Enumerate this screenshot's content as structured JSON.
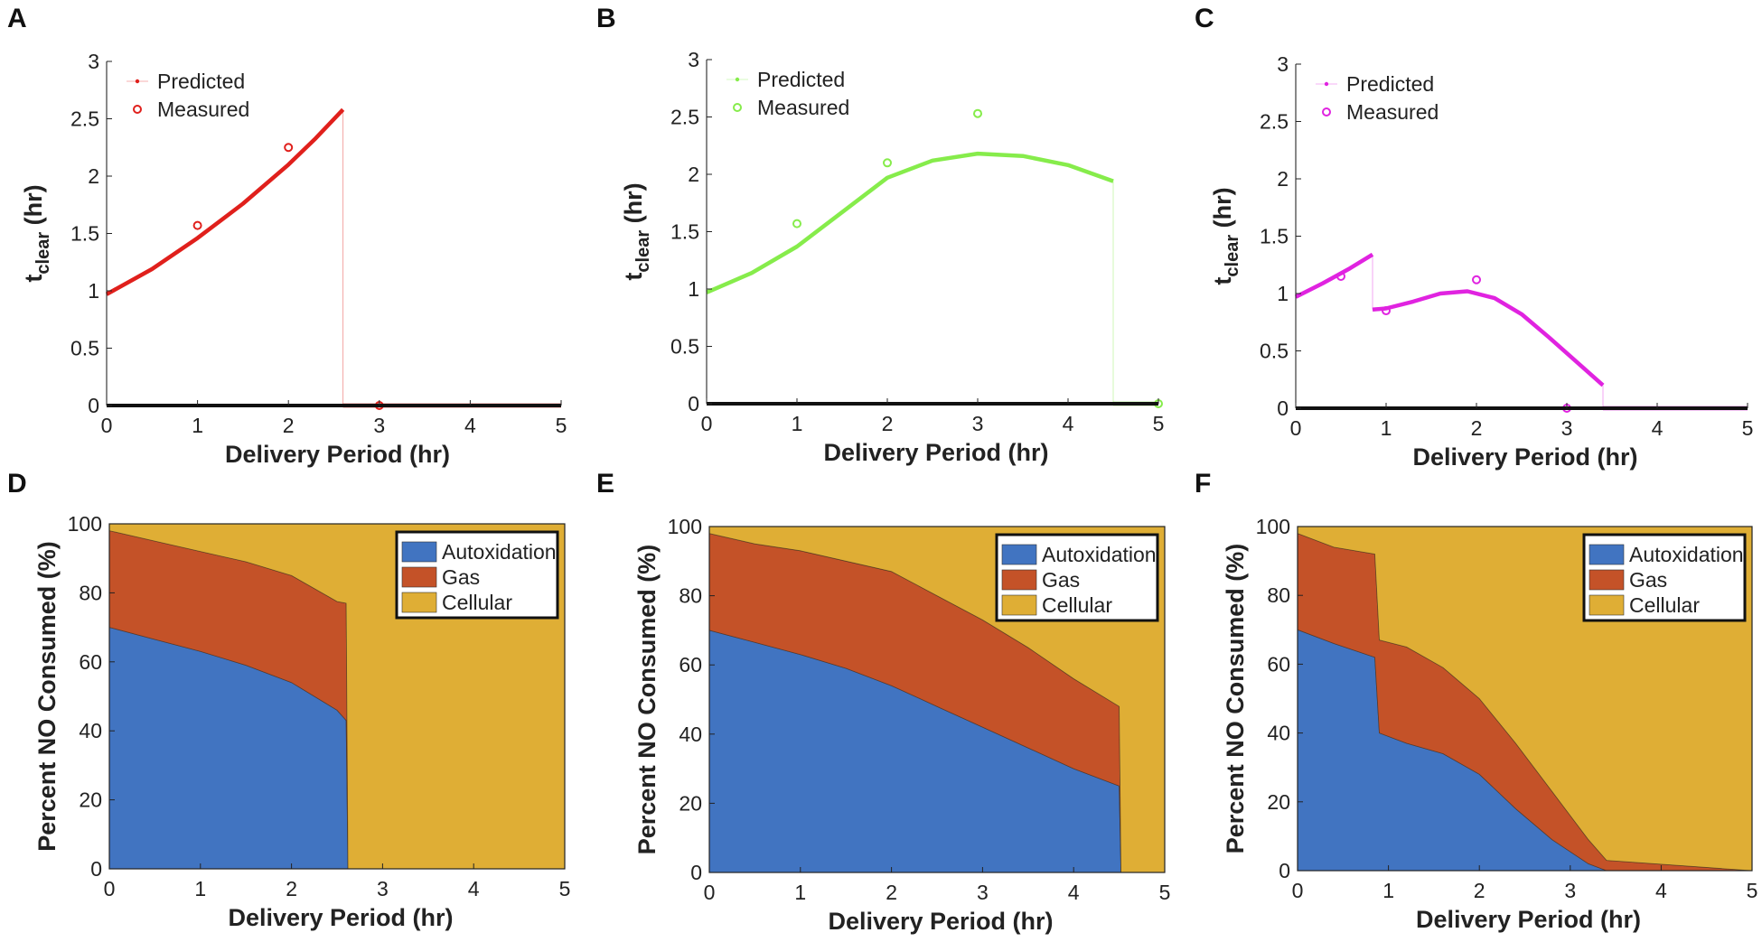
{
  "chart_data": [
    {
      "panel": "A",
      "type": "line",
      "xlabel": "Delivery Period (hr)",
      "ylabel_main": "t",
      "ylabel_sub": "clear",
      "ylabel_unit": "(hr)",
      "xlim": [
        0,
        5
      ],
      "ylim": [
        0,
        3
      ],
      "xticks": [
        "0",
        "1",
        "2",
        "3",
        "4",
        "5"
      ],
      "yticks": [
        "0",
        "0.5",
        "1",
        "1.5",
        "2",
        "2.5",
        "3"
      ],
      "color": "#e0201c",
      "legend": [
        "Predicted",
        "Measured"
      ],
      "series": [
        {
          "name": "Predicted",
          "x": [
            0,
            0.5,
            1,
            1.5,
            2,
            2.3,
            2.6
          ],
          "y": [
            0.97,
            1.19,
            1.46,
            1.76,
            2.1,
            2.33,
            2.58
          ]
        },
        {
          "name": "Predicted",
          "x": [
            2.6,
            3,
            4,
            5
          ],
          "y": [
            0,
            0,
            0,
            0
          ]
        }
      ],
      "measured": {
        "x": [
          1,
          2,
          3
        ],
        "y": [
          1.57,
          2.25,
          0
        ]
      }
    },
    {
      "panel": "B",
      "type": "line",
      "xlabel": "Delivery Period (hr)",
      "ylabel_main": "t",
      "ylabel_sub": "clear",
      "ylabel_unit": "(hr)",
      "xlim": [
        0,
        5
      ],
      "ylim": [
        0,
        3
      ],
      "xticks": [
        "0",
        "1",
        "2",
        "3",
        "4",
        "5"
      ],
      "yticks": [
        "0",
        "0.5",
        "1",
        "1.5",
        "2",
        "2.5",
        "3"
      ],
      "color": "#86ec4b",
      "legend": [
        "Predicted",
        "Measured"
      ],
      "series": [
        {
          "name": "Predicted",
          "x": [
            0,
            0.5,
            1,
            1.5,
            2,
            2.5,
            3,
            3.5,
            4,
            4.5
          ],
          "y": [
            0.97,
            1.14,
            1.37,
            1.67,
            1.97,
            2.12,
            2.18,
            2.16,
            2.08,
            1.94
          ]
        },
        {
          "name": "Predicted",
          "x": [
            4.5,
            5
          ],
          "y": [
            0,
            0
          ]
        }
      ],
      "measured": {
        "x": [
          1,
          2,
          3,
          5
        ],
        "y": [
          1.57,
          2.1,
          2.53,
          0
        ]
      }
    },
    {
      "panel": "C",
      "type": "line",
      "xlabel": "Delivery Period (hr)",
      "ylabel_main": "t",
      "ylabel_sub": "clear",
      "ylabel_unit": "(hr)",
      "xlim": [
        0,
        5
      ],
      "ylim": [
        0,
        3
      ],
      "xticks": [
        "0",
        "1",
        "2",
        "3",
        "4",
        "5"
      ],
      "yticks": [
        "0",
        "0.5",
        "1",
        "1.5",
        "2",
        "2.5",
        "3"
      ],
      "color": "#e023e0",
      "legend": [
        "Predicted",
        "Measured"
      ],
      "series": [
        {
          "name": "Predicted",
          "x": [
            0,
            0.3,
            0.6,
            0.85
          ],
          "y": [
            0.97,
            1.09,
            1.22,
            1.34
          ]
        },
        {
          "name": "Predicted",
          "x": [
            0.85,
            1.0,
            1.3,
            1.6,
            1.9,
            2.2,
            2.5,
            2.8,
            3.1,
            3.4
          ],
          "y": [
            0.86,
            0.87,
            0.93,
            1.0,
            1.02,
            0.96,
            0.82,
            0.62,
            0.41,
            0.2
          ]
        },
        {
          "name": "Predicted",
          "x": [
            3.4,
            4,
            5
          ],
          "y": [
            0,
            0,
            0
          ]
        }
      ],
      "measured": {
        "x": [
          0.5,
          1,
          2,
          3
        ],
        "y": [
          1.15,
          0.85,
          1.12,
          0
        ]
      }
    },
    {
      "panel": "D",
      "type": "area",
      "xlabel": "Delivery Period (hr)",
      "ylabel": "Percent NO Consumed (%)",
      "xlim": [
        0,
        5
      ],
      "ylim": [
        0,
        100
      ],
      "xticks": [
        "0",
        "1",
        "2",
        "3",
        "4",
        "5"
      ],
      "yticks": [
        "0",
        "20",
        "40",
        "60",
        "80",
        "100"
      ],
      "legend": [
        "Autoxidation",
        "Gas",
        "Cellular"
      ],
      "x": [
        0,
        0.5,
        1,
        1.5,
        2,
        2.5,
        2.6,
        2.62,
        5
      ],
      "series": [
        {
          "name": "Autoxidation",
          "color": "#4174c1",
          "values": [
            70,
            66.5,
            63,
            59,
            54,
            46,
            43,
            0,
            0
          ]
        },
        {
          "name": "Gas",
          "color": "#c45228",
          "values": [
            28,
            28.5,
            29,
            30,
            31,
            31.5,
            34,
            0,
            0
          ]
        },
        {
          "name": "Cellular",
          "color": "#dfae35",
          "values": [
            2,
            5,
            8,
            11,
            15,
            22.5,
            23,
            100,
            100
          ]
        }
      ]
    },
    {
      "panel": "E",
      "type": "area",
      "xlabel": "Delivery Period (hr)",
      "ylabel": "Percent NO Consumed (%)",
      "xlim": [
        0,
        5
      ],
      "ylim": [
        0,
        100
      ],
      "xticks": [
        "0",
        "1",
        "2",
        "3",
        "4",
        "5"
      ],
      "yticks": [
        "0",
        "20",
        "40",
        "60",
        "80",
        "100"
      ],
      "legend": [
        "Autoxidation",
        "Gas",
        "Cellular"
      ],
      "x": [
        0,
        0.5,
        1,
        1.5,
        2,
        2.5,
        3,
        3.5,
        4,
        4.5,
        4.52,
        5
      ],
      "series": [
        {
          "name": "Autoxidation",
          "color": "#4174c1",
          "values": [
            70,
            66.5,
            63,
            59,
            54,
            48,
            42,
            36,
            30,
            25,
            0,
            0
          ]
        },
        {
          "name": "Gas",
          "color": "#c45228",
          "values": [
            28,
            28.5,
            30,
            31,
            33,
            32,
            31,
            29,
            26,
            23,
            0,
            0
          ]
        },
        {
          "name": "Cellular",
          "color": "#dfae35",
          "values": [
            2,
            5,
            7,
            10,
            13,
            20,
            27,
            35,
            44,
            52,
            100,
            100
          ]
        }
      ]
    },
    {
      "panel": "F",
      "type": "area",
      "xlabel": "Delivery Period (hr)",
      "ylabel": "Percent NO Consumed (%)",
      "xlim": [
        0,
        5
      ],
      "ylim": [
        0,
        100
      ],
      "xticks": [
        "0",
        "1",
        "2",
        "3",
        "4",
        "5"
      ],
      "yticks": [
        "0",
        "20",
        "40",
        "60",
        "80",
        "100"
      ],
      "legend": [
        "Autoxidation",
        "Gas",
        "Cellular"
      ],
      "x": [
        0,
        0.4,
        0.85,
        0.9,
        1.2,
        1.6,
        2.0,
        2.4,
        2.8,
        3.2,
        3.4,
        5
      ],
      "series": [
        {
          "name": "Autoxidation",
          "color": "#4174c1",
          "values": [
            70,
            66,
            62,
            40,
            37,
            34,
            28,
            18,
            9,
            2,
            0,
            0
          ]
        },
        {
          "name": "Gas",
          "color": "#c45228",
          "values": [
            28,
            28,
            30,
            27,
            28,
            25,
            22,
            19,
            14,
            7,
            3,
            0
          ]
        },
        {
          "name": "Cellular",
          "color": "#dfae35",
          "values": [
            2,
            6,
            8,
            33,
            35,
            41,
            50,
            63,
            77,
            91,
            97,
            100
          ]
        }
      ]
    }
  ]
}
